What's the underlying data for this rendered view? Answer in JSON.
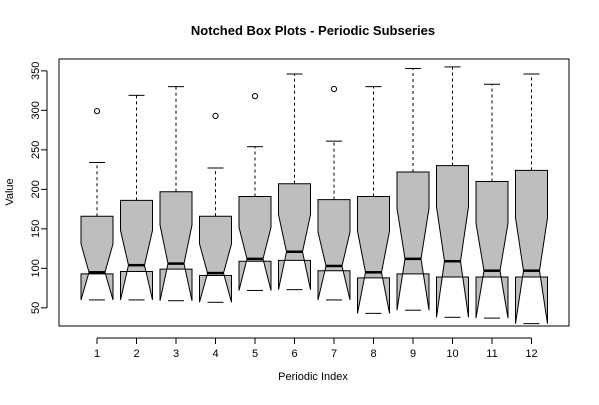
{
  "chart_data": {
    "type": "box",
    "variant": "notched",
    "title": "Notched Box Plots - Periodic Subseries",
    "xlabel": "Periodic Index",
    "ylabel": "Value",
    "categories": [
      "1",
      "2",
      "3",
      "4",
      "5",
      "6",
      "7",
      "8",
      "9",
      "10",
      "11",
      "12"
    ],
    "ylim": [
      27,
      365
    ],
    "yticks": [
      50,
      100,
      150,
      200,
      250,
      300,
      350
    ],
    "grid": false,
    "legend": "none",
    "box_fill": "#bebebe",
    "line_color": "#000000",
    "boxes": [
      {
        "category": "1",
        "whisker_low": 60,
        "q1": 93,
        "median": 95,
        "q3": 166,
        "whisker_high": 234,
        "notch_low": 60,
        "notch_high": 131,
        "outliers": [
          299
        ]
      },
      {
        "category": "2",
        "whisker_low": 60,
        "q1": 96,
        "median": 104,
        "q3": 186,
        "whisker_high": 319,
        "notch_low": 60,
        "notch_high": 148,
        "outliers": []
      },
      {
        "category": "3",
        "whisker_low": 59,
        "q1": 99,
        "median": 106,
        "q3": 197,
        "whisker_high": 330,
        "notch_low": 59,
        "notch_high": 155,
        "outliers": []
      },
      {
        "category": "4",
        "whisker_low": 57,
        "q1": 91,
        "median": 94,
        "q3": 166,
        "whisker_high": 227,
        "notch_low": 57,
        "notch_high": 131,
        "outliers": [
          293
        ]
      },
      {
        "category": "5",
        "whisker_low": 72,
        "q1": 109,
        "median": 112,
        "q3": 191,
        "whisker_high": 254,
        "notch_low": 72,
        "notch_high": 152,
        "outliers": [
          318
        ]
      },
      {
        "category": "6",
        "whisker_low": 73,
        "q1": 110,
        "median": 121,
        "q3": 207,
        "whisker_high": 346,
        "notch_low": 73,
        "notch_high": 168,
        "outliers": []
      },
      {
        "category": "7",
        "whisker_low": 60,
        "q1": 97,
        "median": 103,
        "q3": 187,
        "whisker_high": 261,
        "notch_low": 60,
        "notch_high": 146,
        "outliers": [
          327
        ]
      },
      {
        "category": "8",
        "whisker_low": 43,
        "q1": 88,
        "median": 95,
        "q3": 191,
        "whisker_high": 330,
        "notch_low": 43,
        "notch_high": 147,
        "outliers": []
      },
      {
        "category": "9",
        "whisker_low": 47,
        "q1": 93,
        "median": 112,
        "q3": 222,
        "whisker_high": 353,
        "notch_low": 47,
        "notch_high": 176,
        "outliers": []
      },
      {
        "category": "10",
        "whisker_low": 38,
        "q1": 89,
        "median": 109,
        "q3": 230,
        "whisker_high": 355,
        "notch_low": 38,
        "notch_high": 178,
        "outliers": []
      },
      {
        "category": "11",
        "whisker_low": 37,
        "q1": 89,
        "median": 97,
        "q3": 210,
        "whisker_high": 333,
        "notch_low": 37,
        "notch_high": 157,
        "outliers": []
      },
      {
        "category": "12",
        "whisker_low": 30,
        "q1": 89,
        "median": 97,
        "q3": 224,
        "whisker_high": 346,
        "notch_low": 30,
        "notch_high": 164,
        "outliers": []
      }
    ]
  }
}
